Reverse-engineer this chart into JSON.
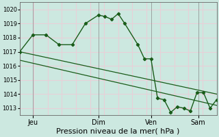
{
  "background_color": "#cce8e0",
  "plot_bg_color": "#cce8e0",
  "grid_color": "#e8d0d8",
  "line_color": "#1a5c1a",
  "xlabel": "Pression niveau de la mer( hPa )",
  "ylim": [
    1012.5,
    1020.5
  ],
  "yticks": [
    1013,
    1014,
    1015,
    1016,
    1017,
    1018,
    1019,
    1020
  ],
  "xtick_labels": [
    "Jeu",
    "Dim",
    "Ven",
    "Sam"
  ],
  "xtick_positions": [
    0.5,
    3.0,
    5.0,
    6.8
  ],
  "xlim": [
    0.0,
    7.5
  ],
  "series1_x": [
    0.0,
    0.5,
    1.0,
    1.5,
    2.0,
    2.5,
    3.0,
    3.25,
    3.5,
    3.75,
    4.0,
    4.5,
    4.75,
    5.0,
    5.25,
    5.5,
    5.75,
    6.0,
    6.25,
    6.5,
    6.75,
    7.0,
    7.25,
    7.5
  ],
  "series1_y": [
    1017.0,
    1018.2,
    1018.2,
    1017.5,
    1017.5,
    1019.0,
    1019.6,
    1019.5,
    1019.3,
    1019.7,
    1019.0,
    1017.5,
    1016.5,
    1016.5,
    1013.7,
    1013.6,
    1012.7,
    1013.1,
    1013.0,
    1012.8,
    1014.1,
    1014.1,
    1013.0,
    1013.6
  ],
  "series2_x": [
    0.0,
    7.5
  ],
  "series2_y": [
    1017.0,
    1014.0
  ],
  "series3_x": [
    0.0,
    7.5
  ],
  "series3_y": [
    1016.4,
    1013.2
  ],
  "vlines_x": [
    0.5,
    3.0,
    5.0,
    6.8
  ],
  "ylabel_fontsize": 6,
  "xlabel_fontsize": 8,
  "xtick_fontsize": 7,
  "fig_width": 3.2,
  "fig_height": 2.0,
  "dpi": 100
}
